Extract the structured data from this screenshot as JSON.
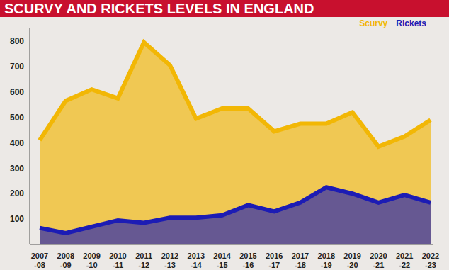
{
  "chart_data": {
    "type": "area",
    "title": "SCURVY AND RICKETS LEVELS IN ENGLAND",
    "categories": [
      "2007-08",
      "2008-09",
      "2009-10",
      "2010-11",
      "2011-12",
      "2012-13",
      "2013-14",
      "2014-15",
      "2015-16",
      "2016-17",
      "2017-18",
      "2018-19",
      "2019-20",
      "2020-21",
      "2021-22",
      "2022-23"
    ],
    "series": [
      {
        "name": "Scurvy",
        "color": "#f2b705",
        "values": [
          410,
          565,
          610,
          575,
          795,
          705,
          495,
          535,
          535,
          445,
          475,
          475,
          520,
          385,
          425,
          490
        ]
      },
      {
        "name": "Rickets",
        "color": "#1c1cb4",
        "values": [
          65,
          45,
          70,
          95,
          85,
          105,
          105,
          115,
          155,
          130,
          165,
          225,
          200,
          165,
          195,
          165
        ]
      }
    ],
    "ylim": [
      0,
      850
    ],
    "yticks": [
      100,
      200,
      300,
      400,
      500,
      600,
      700,
      800
    ],
    "grid": false,
    "legend": "top-right"
  }
}
